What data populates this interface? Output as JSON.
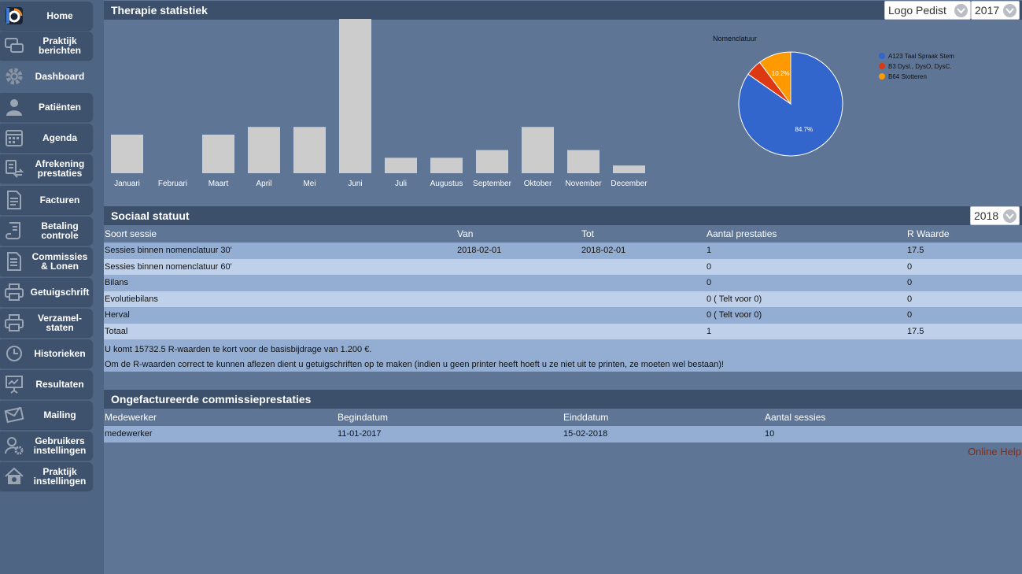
{
  "sidebar": {
    "items": [
      {
        "label": "Home",
        "icon": "logo-icon"
      },
      {
        "label": "Praktijk berichten",
        "icon": "chat-icon"
      },
      {
        "label": "Dashboard",
        "icon": "gear-icon"
      },
      {
        "label": "Patiënten",
        "icon": "user-icon"
      },
      {
        "label": "Agenda",
        "icon": "calendar-icon"
      },
      {
        "label": "Afrekening prestaties",
        "icon": "settlement-icon"
      },
      {
        "label": "Facturen",
        "icon": "invoice-icon"
      },
      {
        "label": "Betaling controle",
        "icon": "scroll-icon"
      },
      {
        "label": "Commissies & Lonen",
        "icon": "document-icon"
      },
      {
        "label": "Getuigschrift",
        "icon": "printer-icon"
      },
      {
        "label": "Verzamel-staten",
        "icon": "printer-icon"
      },
      {
        "label": "Historieken",
        "icon": "clock-icon"
      },
      {
        "label": "Resultaten",
        "icon": "presentation-icon"
      },
      {
        "label": "Mailing",
        "icon": "envelope-icon"
      },
      {
        "label": "Gebruikers instellingen",
        "icon": "user-settings-icon"
      },
      {
        "label": "Praktijk instellingen",
        "icon": "house-settings-icon"
      }
    ]
  },
  "therapy": {
    "title": "Therapie statistiek",
    "practice_select": "Logo Pedist",
    "year_select": "2017"
  },
  "chart_data": [
    {
      "type": "bar",
      "categories": [
        "Januari",
        "Februari",
        "Maart",
        "April",
        "Mei",
        "Juni",
        "Juli",
        "Augustus",
        "September",
        "Oktober",
        "November",
        "December"
      ],
      "values": [
        5,
        0,
        5,
        6,
        6,
        20,
        2,
        2,
        3,
        6,
        3,
        1
      ],
      "ylim": [
        0,
        20
      ],
      "grid": false,
      "bar_color": "#cccccc"
    },
    {
      "type": "pie",
      "title": "Nomenclatuur",
      "legend_position": "right",
      "slices": [
        {
          "name": "A123 Taal Spraak Stem",
          "value": 84.7,
          "label": "84.7%",
          "color": "#3366cc"
        },
        {
          "name": "B3 Dysl., DysO, DysC.",
          "value": 5.1,
          "label": "",
          "color": "#dc3912"
        },
        {
          "name": "B64 Stotteren",
          "value": 10.2,
          "label": "10.2%",
          "color": "#ff9900"
        }
      ]
    }
  ],
  "social": {
    "title": "Sociaal statuut",
    "year_select": "2018",
    "columns": [
      "Soort sessie",
      "Van",
      "Tot",
      "Aantal prestaties",
      "R Waarde"
    ],
    "rows": [
      [
        "Sessies binnen nomenclatuur 30'",
        "2018-02-01",
        "2018-02-01",
        "1",
        "17.5"
      ],
      [
        "Sessies binnen nomenclatuur 60'",
        "",
        "",
        "0",
        "0"
      ],
      [
        "Bilans",
        "",
        "",
        "0",
        "0"
      ],
      [
        "Evolutiebilans",
        "",
        "",
        "0 ( Telt voor 0)",
        "0"
      ],
      [
        "Herval",
        "",
        "",
        "0 ( Telt voor 0)",
        "0"
      ],
      [
        "Totaal",
        "",
        "",
        "1",
        "17.5"
      ]
    ],
    "note1": "U komt 15732.5 R-waarden te kort voor de basisbijdrage van 1.200 €.",
    "note2": "Om de R-waarden correct te kunnen aflezen dient u getuigschriften op te maken (indien u geen printer heeft hoeft u ze niet uit te printen, ze moeten wel bestaan)!"
  },
  "commissions": {
    "title": "Ongefactureerde commissieprestaties",
    "columns": [
      "Medewerker",
      "Begindatum",
      "Einddatum",
      "Aantal sessies"
    ],
    "rows": [
      [
        "medewerker",
        "11-01-2017",
        "15-02-2018",
        "10"
      ]
    ]
  },
  "online_help": "Online Help"
}
